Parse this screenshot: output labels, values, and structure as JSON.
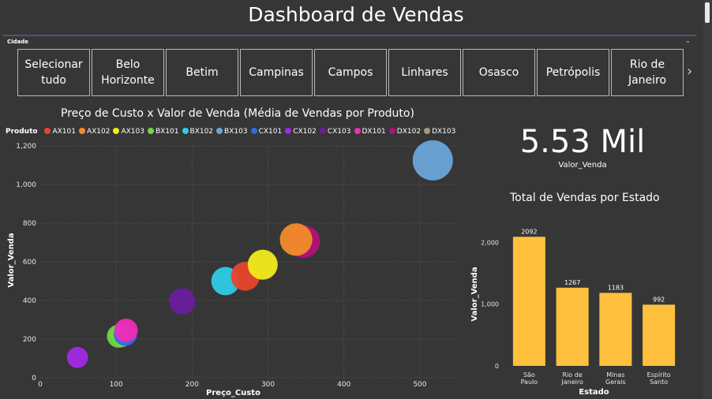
{
  "title": "Dashboard de Vendas",
  "slicer": {
    "label": "Cidade",
    "options": [
      "Selecionar tudo",
      "Belo Horizonte",
      "Betim",
      "Campinas",
      "Campos",
      "Linhares",
      "Osasco",
      "Petrópolis",
      "Rio de Janeiro"
    ]
  },
  "kpi": {
    "value": "5.53 Mil",
    "label": "Valor_Venda"
  },
  "colors": {
    "background": "#363636",
    "bar": "#FFC13D",
    "AX101": "#E8452C",
    "AX102": "#F28C28",
    "AX103": "#F2EB1C",
    "BX101": "#6FD644",
    "BX102": "#2ECCE8",
    "BX103": "#6AA5DA",
    "CX101": "#2F6BE6",
    "CX102": "#A22AE6",
    "CX103": "#6A1E9E",
    "DX101": "#F02BB8",
    "DX102": "#B5107A",
    "DX103": "#A9967F"
  },
  "chart_data": [
    {
      "type": "scatter",
      "title": "Preço de Custo x Valor de Venda (Média de Vendas por Produto)",
      "xlabel": "Preço_Custo",
      "ylabel": "Valor_Venda",
      "legend_title": "Produto",
      "legend_position": "top-left",
      "xlim": [
        0,
        550
      ],
      "ylim": [
        0,
        1200
      ],
      "xticks": [
        0,
        100,
        200,
        300,
        400,
        500
      ],
      "yticks": [
        0,
        200,
        400,
        600,
        800,
        1000,
        1200
      ],
      "ytick_labels": [
        "0",
        "200",
        "400",
        "600",
        "800",
        "1,000",
        "1,200"
      ],
      "grid": true,
      "series": [
        {
          "name": "AX101",
          "x": 270,
          "y": 525
        },
        {
          "name": "AX102",
          "x": 337,
          "y": 715
        },
        {
          "name": "AX103",
          "x": 293,
          "y": 585
        },
        {
          "name": "BX101",
          "x": 103,
          "y": 215
        },
        {
          "name": "BX102",
          "x": 244,
          "y": 500
        },
        {
          "name": "BX103",
          "x": 517,
          "y": 1125
        },
        {
          "name": "CX101",
          "x": 112,
          "y": 225
        },
        {
          "name": "CX102",
          "x": 49,
          "y": 105
        },
        {
          "name": "CX103",
          "x": 187,
          "y": 395
        },
        {
          "name": "DX101",
          "x": 113,
          "y": 245
        },
        {
          "name": "DX102",
          "x": 347,
          "y": 705
        },
        {
          "name": "DX103",
          "x": 107,
          "y": 218
        }
      ]
    },
    {
      "type": "bar",
      "title": "Total de Vendas por Estado",
      "xlabel": "Estado",
      "ylabel": "Valor_Venda",
      "categories": [
        "São Paulo",
        "Rio de Janeiro",
        "Minas Gerais",
        "Espírito Santo"
      ],
      "values": [
        2092,
        1267,
        1183,
        992
      ],
      "value_labels": [
        "2092",
        "1267",
        "1183",
        "992"
      ],
      "ylim": [
        0,
        2300
      ],
      "yticks": [
        0,
        1000,
        2000
      ],
      "ytick_labels": [
        "0",
        "1,000",
        "2,000"
      ],
      "grid": false
    }
  ]
}
